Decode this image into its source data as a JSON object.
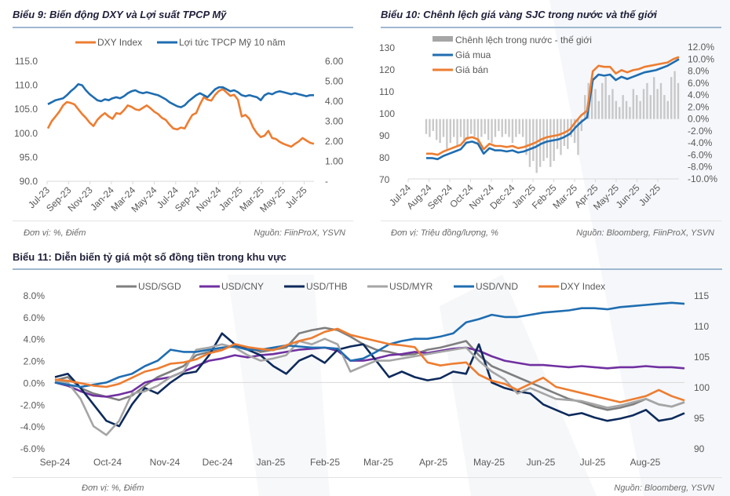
{
  "charts": {
    "c9": {
      "title": "Biểu 9: Biến động DXY và Lợi suất TPCP Mỹ",
      "unit": "Đơn vị: %, Điểm",
      "source": "Nguồn: FiinProX, YSVN"
    },
    "c10": {
      "title": "Biểu 10: Chênh lệch giá vàng SJC trong nước và thế giới",
      "unit": "Đơn vị: Triệu đồng/lượng, %",
      "source": "Nguồn: Bloomberg, FiinProX, YSVN"
    },
    "c11": {
      "title": "Biểu 11: Diễn biến tỷ giá một số đồng tiền trong khu vực",
      "unit": "Đơn vị: %, Điểm",
      "source": "Nguồn: Bloomberg, YSVN"
    }
  },
  "chart_data": [
    {
      "type": "line",
      "title": "Biểu 9: Biến động DXY và Lợi suất TPCP Mỹ",
      "x_ticks": [
        "Jul-23",
        "Sep-23",
        "Nov-23",
        "Jan-24",
        "Mar-24",
        "May-24",
        "Jul-24",
        "Sep-24",
        "Nov-24",
        "Jan-25",
        "Mar-25",
        "May-25",
        "Jul-25"
      ],
      "y_left": {
        "ticks": [
          "115.0",
          "110.0",
          "105.0",
          "100.0",
          "95.0",
          "90.0"
        ],
        "range": [
          90,
          115
        ]
      },
      "y_right": {
        "ticks": [
          "6.00",
          "5.00",
          "4.00",
          "3.00",
          "2.00",
          "1.00",
          "-"
        ],
        "range": [
          0,
          6
        ]
      },
      "grid": false,
      "legend": "top",
      "series": [
        {
          "name": "DXY Index",
          "axis": "left",
          "color": "#ED7D31",
          "values": [
            101.0,
            102.5,
            103.5,
            104.5,
            105.8,
            106.5,
            106.3,
            106.0,
            105.0,
            104.0,
            103.2,
            102.2,
            101.5,
            102.8,
            103.6,
            104.2,
            103.5,
            103.0,
            104.2,
            104.0,
            104.8,
            105.8,
            105.5,
            105.0,
            104.8,
            105.3,
            105.8,
            105.2,
            104.5,
            104.0,
            103.2,
            102.8,
            101.8,
            101.0,
            100.8,
            101.2,
            101.0,
            102.5,
            103.8,
            104.2,
            106.0,
            107.5,
            107.0,
            106.8,
            108.0,
            108.8,
            109.2,
            108.5,
            107.8,
            108.0,
            107.0,
            103.5,
            103.8,
            103.0,
            101.2,
            100.0,
            99.2,
            99.5,
            100.5,
            99.0,
            98.8,
            98.2,
            97.8,
            97.5,
            97.2,
            97.8,
            98.3,
            99.0,
            98.5,
            98.0,
            97.8
          ]
        },
        {
          "name": "Lợi tức TPCP Mỹ 10 năm",
          "axis": "right",
          "color": "#1F6DB1",
          "values": [
            3.85,
            3.95,
            4.05,
            4.1,
            4.15,
            4.3,
            4.5,
            4.65,
            4.85,
            4.8,
            4.55,
            4.35,
            4.2,
            4.05,
            4.0,
            4.1,
            4.05,
            4.15,
            4.2,
            4.15,
            4.25,
            4.4,
            4.5,
            4.55,
            4.45,
            4.4,
            4.45,
            4.4,
            4.35,
            4.3,
            4.2,
            4.1,
            3.95,
            3.85,
            3.75,
            3.7,
            3.8,
            4.0,
            4.15,
            4.3,
            4.4,
            4.3,
            4.2,
            4.4,
            4.6,
            4.7,
            4.7,
            4.6,
            4.5,
            4.55,
            4.45,
            4.3,
            4.25,
            4.3,
            4.25,
            4.2,
            4.05,
            4.3,
            4.4,
            4.35,
            4.45,
            4.5,
            4.45,
            4.4,
            4.35,
            4.4,
            4.35,
            4.3,
            4.25,
            4.3,
            4.3
          ]
        }
      ]
    },
    {
      "type": "line",
      "title": "Biểu 10: Chênh lệch giá vàng SJC trong nước và thế giới",
      "x_ticks": [
        "Jul-24",
        "Aug-24",
        "Sep-24",
        "Oct-24",
        "Nov-24",
        "Dec-24",
        "Jan-25",
        "Feb-25",
        "Mar-25",
        "Apr-25",
        "May-25",
        "Jun-25",
        "Jul-25"
      ],
      "y_left": {
        "ticks": [
          "130",
          "120",
          "110",
          "100",
          "90",
          "80",
          "70"
        ],
        "range": [
          70,
          130
        ]
      },
      "y_right": {
        "ticks": [
          "12.0%",
          "10.0%",
          "8.0%",
          "6.0%",
          "4.0%",
          "2.0%",
          "0.0%",
          "-2.0%",
          "-4.0%",
          "-6.0%",
          "-8.0%",
          "-10.0%"
        ],
        "range": [
          -10,
          12
        ]
      },
      "grid": false,
      "legend": "top-left",
      "series": [
        {
          "name": "Chênh lệch trong nước - thế giới",
          "type": "bar",
          "axis": "right",
          "color": "#BFBFBF",
          "values": [
            -2.5,
            -3,
            -2,
            -3.5,
            -4,
            -3,
            -5,
            -4,
            -3,
            -4.5,
            -3,
            -4,
            -3.5,
            -2.5,
            -3,
            -4,
            -3,
            -2.5,
            -3.5,
            -4,
            -3,
            -2,
            -3,
            -2.5,
            -3,
            -4,
            -3,
            -2.5,
            -3,
            -6,
            -8,
            -7,
            -9,
            -8,
            -7,
            -6.5,
            -8,
            -7,
            -5,
            -6,
            -4.5,
            -5,
            -3,
            -4,
            -6,
            -2,
            4,
            6,
            7,
            5,
            3,
            6,
            7,
            4,
            5,
            3,
            2,
            4,
            3,
            2,
            5,
            4,
            3,
            5,
            6,
            4,
            7,
            5,
            6,
            4,
            3,
            7,
            8,
            6
          ]
        },
        {
          "name": "Giá mua",
          "axis": "left",
          "color": "#1F6DB1",
          "values": [
            79.5,
            79.5,
            79.0,
            80.5,
            81.5,
            82.5,
            83.5,
            86.5,
            87.0,
            86.0,
            81.5,
            84.0,
            83.0,
            83.0,
            82.5,
            83.0,
            82.0,
            82.5,
            83.5,
            84.5,
            86.0,
            87.0,
            87.5,
            88.0,
            89.0,
            90.5,
            93.5,
            96.0,
            98.0,
            115.0,
            117.5,
            117.0,
            117.5,
            115.0,
            116.5,
            115.5,
            116.5,
            117.5,
            118.5,
            119.0,
            119.5,
            120.5,
            121.5,
            123.0,
            124.5
          ]
        },
        {
          "name": "Giá bán",
          "axis": "left",
          "color": "#ED7D31",
          "values": [
            81.5,
            81.5,
            81.0,
            82.5,
            83.5,
            84.5,
            85.5,
            88.5,
            89.0,
            88.0,
            83.5,
            86.0,
            85.0,
            85.0,
            84.5,
            85.0,
            84.0,
            84.5,
            85.5,
            86.5,
            88.0,
            89.0,
            89.5,
            90.0,
            91.0,
            92.5,
            96.0,
            99.0,
            101.0,
            119.0,
            121.5,
            121.0,
            121.0,
            118.0,
            119.5,
            118.5,
            119.5,
            120.0,
            121.0,
            121.5,
            122.0,
            122.5,
            123.0,
            124.5,
            125.5
          ]
        }
      ]
    },
    {
      "type": "line",
      "title": "Biểu 11: Diễn biến tỷ giá một số đồng tiền trong khu vực",
      "x_ticks": [
        "Sep-24",
        "Oct-24",
        "Nov-24",
        "Dec-24",
        "Jan-25",
        "Feb-25",
        "Mar-25",
        "Apr-25",
        "May-25",
        "Jun-25",
        "Jul-25",
        "Aug-25"
      ],
      "y_left": {
        "ticks": [
          "8.0%",
          "6.0%",
          "4.0%",
          "2.0%",
          "0.0%",
          "-2.0%",
          "-4.0%",
          "-6.0%"
        ],
        "range": [
          -6,
          8
        ]
      },
      "y_right": {
        "ticks": [
          "115",
          "110",
          "105",
          "100",
          "95",
          "90"
        ],
        "range": [
          90,
          115
        ]
      },
      "grid": false,
      "legend": "top",
      "series": [
        {
          "name": "USD/SGD",
          "axis": "left",
          "color": "#7F7F7F",
          "values": [
            0.2,
            0.5,
            -0.5,
            -1.0,
            -1.3,
            -1.6,
            -1.2,
            -0.3,
            0.5,
            1.0,
            1.5,
            2.5,
            2.8,
            3.0,
            3.5,
            3.2,
            2.8,
            3.0,
            3.2,
            4.5,
            4.8,
            5.0,
            4.8,
            4.2,
            3.5,
            3.0,
            2.8,
            2.5,
            2.6,
            3.0,
            3.2,
            3.5,
            3.8,
            2.5,
            1.5,
            1.0,
            0.5,
            0.0,
            -0.5,
            -1.0,
            -1.5,
            -1.8,
            -2.2,
            -2.5,
            -2.3,
            -2.0,
            -1.5,
            -2.0,
            -2.2,
            -1.8
          ]
        },
        {
          "name": "USD/CNY",
          "axis": "left",
          "color": "#7030A0",
          "values": [
            0.0,
            -0.3,
            -0.8,
            -1.2,
            -1.3,
            -1.1,
            -0.8,
            0.0,
            0.3,
            0.5,
            1.0,
            1.5,
            2.0,
            2.2,
            2.5,
            2.3,
            2.5,
            2.6,
            2.8,
            3.0,
            3.1,
            3.2,
            2.9,
            2.0,
            2.0,
            2.2,
            2.5,
            2.6,
            2.8,
            2.7,
            2.9,
            3.1,
            3.2,
            2.9,
            2.4,
            2.0,
            1.8,
            1.6,
            1.6,
            1.5,
            1.4,
            1.5,
            1.4,
            1.3,
            1.4,
            1.4,
            1.5,
            1.4,
            1.4,
            1.3
          ]
        },
        {
          "name": "USD/THB",
          "axis": "left",
          "color": "#0D2A5C",
          "values": [
            0.5,
            0.8,
            -0.5,
            -2.0,
            -3.5,
            -4.0,
            -2.0,
            -0.5,
            -1.0,
            0.0,
            0.8,
            1.0,
            2.5,
            4.5,
            3.5,
            3.0,
            2.5,
            1.5,
            0.8,
            2.0,
            2.5,
            1.8,
            3.0,
            3.3,
            3.5,
            2.0,
            0.5,
            1.0,
            0.5,
            0.2,
            0.4,
            1.0,
            0.8,
            3.5,
            0.0,
            -0.5,
            -0.8,
            -1.0,
            -2.0,
            -2.5,
            -3.0,
            -2.8,
            -3.2,
            -3.5,
            -3.3,
            -3.0,
            -2.5,
            -3.5,
            -3.3,
            -2.8
          ]
        },
        {
          "name": "USD/MYR",
          "axis": "left",
          "color": "#A5A5A5",
          "values": [
            0.1,
            0.0,
            -1.5,
            -4.0,
            -4.8,
            -3.5,
            -1.0,
            -0.8,
            -0.3,
            0.5,
            1.0,
            3.0,
            3.2,
            3.5,
            3.2,
            2.5,
            2.0,
            2.2,
            2.5,
            3.8,
            3.5,
            4.0,
            3.5,
            1.0,
            1.5,
            2.0,
            2.0,
            2.2,
            2.4,
            2.6,
            2.8,
            3.0,
            3.2,
            2.0,
            1.0,
            0.3,
            -1.0,
            -0.5,
            -1.0,
            -1.5,
            -1.6,
            -1.7,
            -2.0,
            -2.3,
            -2.1,
            -1.8,
            -1.5,
            -2.0,
            -2.2,
            -1.8
          ]
        },
        {
          "name": "USD/VND",
          "axis": "left",
          "color": "#1F6DB1",
          "values": [
            0.0,
            -0.2,
            -0.4,
            -0.2,
            0.0,
            0.5,
            0.8,
            1.5,
            2.0,
            3.0,
            2.8,
            2.8,
            3.0,
            3.2,
            3.3,
            3.0,
            3.0,
            3.2,
            3.4,
            3.3,
            3.2,
            3.2,
            3.1,
            2.0,
            2.2,
            2.8,
            3.5,
            3.8,
            4.0,
            4.0,
            4.2,
            4.5,
            5.5,
            5.8,
            6.2,
            6.0,
            6.0,
            6.2,
            6.4,
            6.5,
            6.6,
            6.8,
            6.8,
            6.7,
            6.9,
            7.0,
            7.1,
            7.2,
            7.3,
            7.2
          ]
        },
        {
          "name": "DXY Index",
          "axis": "right",
          "color": "#ED7D31",
          "values": [
            101.2,
            101.0,
            100.6,
            100.2,
            100.0,
            100.5,
            101.5,
            102.5,
            103.0,
            103.8,
            104.0,
            104.5,
            105.5,
            106.0,
            107.0,
            106.5,
            106.2,
            106.0,
            106.8,
            107.5,
            108.0,
            109.0,
            109.5,
            108.5,
            108.0,
            107.5,
            107.0,
            106.8,
            106.5,
            104.0,
            103.5,
            103.8,
            104.0,
            102.0,
            101.0,
            100.5,
            99.5,
            100.5,
            101.5,
            100.0,
            99.5,
            99.0,
            98.5,
            98.0,
            97.5,
            98.0,
            98.5,
            99.5,
            98.5,
            97.8
          ]
        }
      ]
    }
  ]
}
